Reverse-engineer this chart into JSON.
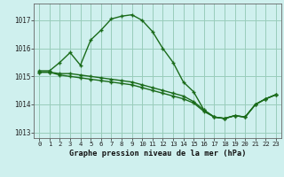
{
  "title": "Graphe pression niveau de la mer (hPa)",
  "bg_color": "#cff0ee",
  "grid_color": "#99ccbb",
  "line_color": "#1a6b1a",
  "xlim_min": -0.5,
  "xlim_max": 23.5,
  "ylim_min": 1012.8,
  "ylim_max": 1017.6,
  "yticks": [
    1013,
    1014,
    1015,
    1016,
    1017
  ],
  "xticks": [
    0,
    1,
    2,
    3,
    4,
    5,
    6,
    7,
    8,
    9,
    10,
    11,
    12,
    13,
    14,
    15,
    16,
    17,
    18,
    19,
    20,
    21,
    22,
    23
  ],
  "series1_x": [
    0,
    1,
    2,
    3,
    4,
    5,
    6,
    7,
    8,
    9,
    10,
    11,
    12,
    13,
    14,
    15,
    16,
    17,
    18,
    19,
    20,
    21,
    22,
    23
  ],
  "series1_y": [
    1015.2,
    1015.2,
    1015.5,
    1015.85,
    1015.4,
    1016.3,
    1016.65,
    1017.05,
    1017.15,
    1017.2,
    1017.0,
    1016.6,
    1016.0,
    1015.5,
    1014.8,
    1014.45,
    1013.8,
    1013.55,
    1013.5,
    1013.6,
    1013.55,
    1014.0,
    1014.2,
    1014.35
  ],
  "series2_x": [
    0,
    1,
    2,
    3,
    4,
    5,
    6,
    7,
    8,
    9,
    10,
    11,
    12,
    13,
    14,
    15,
    16,
    17,
    18,
    19,
    20,
    21,
    22,
    23
  ],
  "series2_y": [
    1015.15,
    1015.15,
    1015.1,
    1015.1,
    1015.05,
    1015.0,
    1014.95,
    1014.9,
    1014.85,
    1014.8,
    1014.7,
    1014.6,
    1014.5,
    1014.4,
    1014.3,
    1014.1,
    1013.8,
    1013.55,
    1013.5,
    1013.6,
    1013.55,
    1014.0,
    1014.2,
    1014.35
  ],
  "series3_x": [
    0,
    1,
    2,
    3,
    4,
    5,
    6,
    7,
    8,
    9,
    10,
    11,
    12,
    13,
    14,
    15,
    16,
    17,
    18,
    19,
    20,
    21,
    22,
    23
  ],
  "series3_y": [
    1015.15,
    1015.15,
    1015.05,
    1015.0,
    1014.95,
    1014.9,
    1014.85,
    1014.8,
    1014.75,
    1014.7,
    1014.6,
    1014.5,
    1014.4,
    1014.3,
    1014.2,
    1014.05,
    1013.75,
    1013.55,
    1013.5,
    1013.6,
    1013.55,
    1014.0,
    1014.2,
    1014.35
  ]
}
